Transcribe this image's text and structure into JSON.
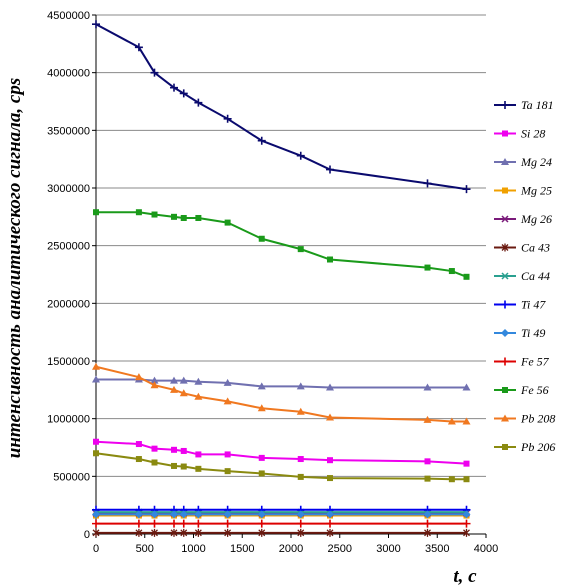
{
  "chart_data": {
    "type": "line",
    "title": "",
    "xlabel": "t, c",
    "ylabel": "интенсивность аналитического сигнала, cps",
    "xlim": [
      0,
      4000
    ],
    "ylim": [
      0,
      4500000
    ],
    "x_ticks": [
      "0",
      "500",
      "1000",
      "1500",
      "2000",
      "2500",
      "3000",
      "3500",
      "4000"
    ],
    "y_ticks": [
      "0",
      "500000",
      "1000000",
      "1500000",
      "2000000",
      "2500000",
      "3000000",
      "3500000",
      "4000000",
      "4500000"
    ],
    "grid": "horizontal",
    "legend": "right",
    "series": [
      {
        "name": "Ta 181",
        "color": "#0a0a6e",
        "marker": "plus",
        "x": [
          0,
          440,
          600,
          800,
          900,
          1050,
          1350,
          1700,
          2100,
          2400,
          3400,
          3800
        ],
        "y": [
          4420000,
          4220000,
          4000000,
          3870000,
          3820000,
          3740000,
          3600000,
          3410000,
          3280000,
          3160000,
          3040000,
          2990000
        ]
      },
      {
        "name": "Si 28",
        "color": "#ee00ee",
        "marker": "square",
        "x": [
          0,
          440,
          600,
          800,
          900,
          1050,
          1350,
          1700,
          2100,
          2400,
          3400,
          3800
        ],
        "y": [
          800000,
          780000,
          740000,
          730000,
          720000,
          690000,
          690000,
          660000,
          650000,
          640000,
          630000,
          610000
        ]
      },
      {
        "name": "Mg 24",
        "color": "#7070b0",
        "marker": "triangle",
        "x": [
          0,
          440,
          600,
          800,
          900,
          1050,
          1350,
          1700,
          2100,
          2400,
          3400,
          3800
        ],
        "y": [
          1340000,
          1340000,
          1330000,
          1330000,
          1330000,
          1320000,
          1310000,
          1280000,
          1280000,
          1270000,
          1270000,
          1270000
        ]
      },
      {
        "name": "Mg 25",
        "color": "#f0a000",
        "marker": "square",
        "x": [
          0,
          440,
          600,
          800,
          900,
          1050,
          1350,
          1700,
          2100,
          2400,
          3400,
          3800
        ],
        "y": [
          160000,
          160000,
          160000,
          160000,
          160000,
          160000,
          160000,
          160000,
          160000,
          160000,
          160000,
          160000
        ]
      },
      {
        "name": "Mg 26",
        "color": "#7a1a7a",
        "marker": "x",
        "x": [
          0,
          440,
          600,
          800,
          900,
          1050,
          1350,
          1700,
          2100,
          2400,
          3400,
          3800
        ],
        "y": [
          180000,
          180000,
          180000,
          180000,
          180000,
          180000,
          180000,
          180000,
          180000,
          180000,
          180000,
          180000
        ]
      },
      {
        "name": "Ca 43",
        "color": "#6a1a10",
        "marker": "star",
        "x": [
          0,
          440,
          600,
          800,
          900,
          1050,
          1350,
          1700,
          2100,
          2400,
          3400,
          3800
        ],
        "y": [
          10000,
          10000,
          10000,
          10000,
          10000,
          10000,
          10000,
          10000,
          10000,
          10000,
          10000,
          10000
        ]
      },
      {
        "name": "Ca 44",
        "color": "#2aa090",
        "marker": "x",
        "x": [
          0,
          440,
          600,
          800,
          900,
          1050,
          1350,
          1700,
          2100,
          2400,
          3400,
          3800
        ],
        "y": [
          190000,
          190000,
          190000,
          190000,
          190000,
          190000,
          190000,
          190000,
          190000,
          190000,
          190000,
          190000
        ]
      },
      {
        "name": "Ti 47",
        "color": "#0000ee",
        "marker": "plus",
        "x": [
          0,
          440,
          600,
          800,
          900,
          1050,
          1350,
          1700,
          2100,
          2400,
          3400,
          3800
        ],
        "y": [
          210000,
          210000,
          210000,
          210000,
          210000,
          210000,
          210000,
          210000,
          210000,
          210000,
          210000,
          210000
        ]
      },
      {
        "name": "Ti 49",
        "color": "#3388dd",
        "marker": "diamond",
        "x": [
          0,
          440,
          600,
          800,
          900,
          1050,
          1350,
          1700,
          2100,
          2400,
          3400,
          3800
        ],
        "y": [
          170000,
          170000,
          170000,
          170000,
          170000,
          170000,
          170000,
          170000,
          170000,
          170000,
          170000,
          170000
        ]
      },
      {
        "name": "Fe 57",
        "color": "#dd0000",
        "marker": "plus",
        "x": [
          0,
          440,
          600,
          800,
          900,
          1050,
          1350,
          1700,
          2100,
          2400,
          3400,
          3800
        ],
        "y": [
          90000,
          90000,
          90000,
          90000,
          90000,
          90000,
          90000,
          90000,
          90000,
          90000,
          90000,
          90000
        ]
      },
      {
        "name": "Fe 56",
        "color": "#1a9a1a",
        "marker": "square",
        "x": [
          0,
          440,
          600,
          800,
          900,
          1050,
          1350,
          1700,
          2100,
          2400,
          3400,
          3650,
          3800
        ],
        "y": [
          2790000,
          2790000,
          2770000,
          2750000,
          2740000,
          2740000,
          2700000,
          2560000,
          2470000,
          2380000,
          2310000,
          2280000,
          2230000
        ]
      },
      {
        "name": "Pb 208",
        "color": "#f07820",
        "marker": "triangle",
        "x": [
          0,
          440,
          600,
          800,
          900,
          1050,
          1350,
          1700,
          2100,
          2400,
          3400,
          3650,
          3800
        ],
        "y": [
          1450000,
          1360000,
          1290000,
          1250000,
          1220000,
          1190000,
          1150000,
          1090000,
          1060000,
          1010000,
          990000,
          975000,
          975000
        ]
      },
      {
        "name": "Pb 206",
        "color": "#8a8a10",
        "marker": "square",
        "x": [
          0,
          440,
          600,
          800,
          900,
          1050,
          1350,
          1700,
          2100,
          2400,
          3400,
          3650,
          3800
        ],
        "y": [
          700000,
          650000,
          620000,
          590000,
          585000,
          565000,
          545000,
          525000,
          495000,
          485000,
          480000,
          475000,
          475000
        ]
      }
    ]
  }
}
